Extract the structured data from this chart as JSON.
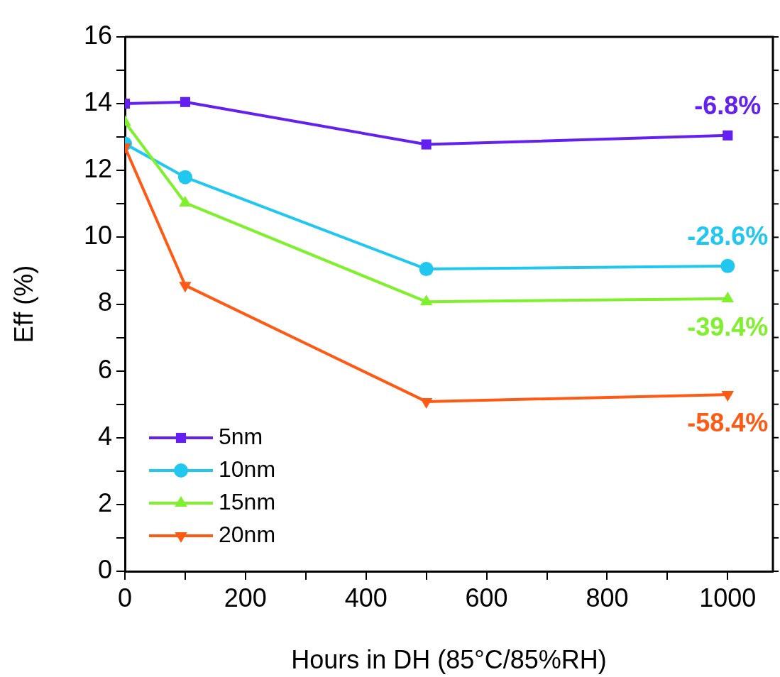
{
  "chart_data": {
    "type": "line",
    "xlabel": "Hours in DH (85°C/85%RH)",
    "ylabel": "Eff (%)",
    "x": [
      0,
      100,
      500,
      1000
    ],
    "series": [
      {
        "name": "5nm",
        "color": "#6420f0",
        "marker": "square",
        "values": [
          14.0,
          14.05,
          12.78,
          13.05
        ]
      },
      {
        "name": "10nm",
        "color": "#20c8f0",
        "marker": "circle",
        "values": [
          12.8,
          11.8,
          9.05,
          9.14
        ]
      },
      {
        "name": "15nm",
        "color": "#7ef02c",
        "marker": "triangle",
        "values": [
          13.45,
          11.03,
          8.07,
          8.16
        ]
      },
      {
        "name": "20nm",
        "color": "#ff5a14",
        "marker": "triangle_down",
        "values": [
          12.7,
          8.56,
          5.08,
          5.29
        ]
      }
    ],
    "xlim": [
      0,
      1075
    ],
    "xticks": [
      0,
      {
        "value": 100,
        "label": null
      },
      200,
      {
        "value": 300,
        "label": null
      },
      400,
      {
        "value": 500,
        "label": null
      },
      600,
      {
        "value": 700,
        "label": null
      },
      800,
      {
        "value": 900,
        "label": null
      },
      1000
    ],
    "ylim": [
      0,
      16
    ],
    "yticks": [
      0,
      {
        "value": 1,
        "label": null
      },
      2,
      {
        "value": 3,
        "label": null
      },
      4,
      {
        "value": 5,
        "label": null
      },
      6,
      {
        "value": 7,
        "label": null
      },
      8,
      {
        "value": 9,
        "label": null
      },
      10,
      {
        "value": 11,
        "label": null
      },
      12,
      {
        "value": 13,
        "label": null
      },
      14,
      {
        "value": 15,
        "label": null
      },
      16
    ],
    "annotations": [
      "-6.8%",
      "-28.6%",
      "-39.4%",
      "-58.4%"
    ],
    "legend": "bottom left",
    "grid": false,
    "line_style": "solid"
  }
}
